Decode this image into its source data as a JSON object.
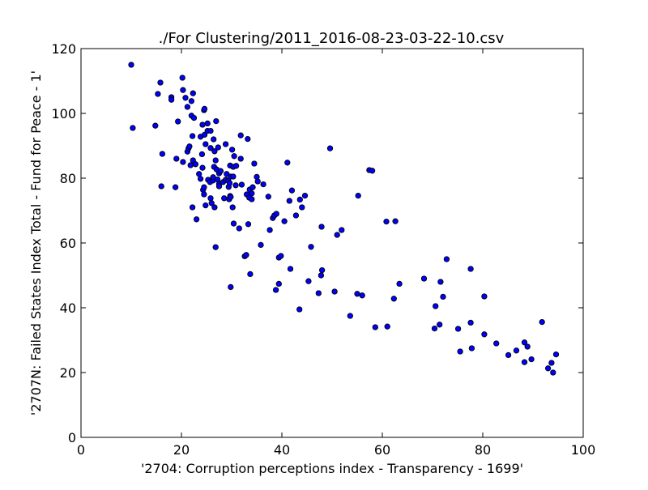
{
  "chart_data": {
    "type": "scatter",
    "title": "./For Clustering/2011_2016-08-23-03-22-10.csv",
    "xlabel": "'2704: Corruption perceptions index - Transparency - 1699'",
    "ylabel": "'2707N: Failed States Index Total - Fund for Peace - 1'",
    "xlim": [
      0,
      100
    ],
    "ylim": [
      0,
      120
    ],
    "xticks": [
      0,
      20,
      40,
      60,
      80,
      100
    ],
    "yticks": [
      0,
      20,
      40,
      60,
      80,
      100,
      120
    ],
    "grid": false,
    "marker_color": "#0000ff",
    "marker_edge": "#000000",
    "points": [
      [
        10,
        115
      ],
      [
        10.3,
        95.5
      ],
      [
        14.8,
        96.2
      ],
      [
        15.3,
        106
      ],
      [
        15.8,
        109.5
      ],
      [
        16.2,
        87.5
      ],
      [
        16,
        77.5
      ],
      [
        18,
        105
      ],
      [
        18,
        104.2
      ],
      [
        18.8,
        77.2
      ],
      [
        19,
        86
      ],
      [
        19.3,
        97.5
      ],
      [
        20.2,
        111
      ],
      [
        20.3,
        107.2
      ],
      [
        20.8,
        104.8
      ],
      [
        21.2,
        102
      ],
      [
        21.2,
        88.2
      ],
      [
        21.4,
        89.2
      ],
      [
        21.6,
        89.8
      ],
      [
        22,
        103.8
      ],
      [
        22.3,
        106.2
      ],
      [
        22,
        99.3
      ],
      [
        22.5,
        98.6
      ],
      [
        20.3,
        85
      ],
      [
        21.8,
        84
      ],
      [
        22.3,
        85.5
      ],
      [
        22.8,
        84.3
      ],
      [
        22.2,
        93
      ],
      [
        22.2,
        71
      ],
      [
        23,
        67.3
      ],
      [
        23.5,
        81.3
      ],
      [
        23.8,
        79.8
      ],
      [
        23.8,
        92.8
      ],
      [
        24.1,
        87.4
      ],
      [
        24.2,
        83.2
      ],
      [
        24.3,
        76.4
      ],
      [
        24.5,
        75
      ],
      [
        24.5,
        77.2
      ],
      [
        24.8,
        71.6
      ],
      [
        24.2,
        96.5
      ],
      [
        24.5,
        101
      ],
      [
        24.6,
        101.4
      ],
      [
        24.6,
        93.4
      ],
      [
        25.2,
        96.9
      ],
      [
        24.8,
        90.5
      ],
      [
        25.2,
        94.6
      ],
      [
        25.8,
        94.6
      ],
      [
        25.8,
        89.3
      ],
      [
        25.3,
        79.5
      ],
      [
        25.7,
        78.8
      ],
      [
        26.3,
        79.3
      ],
      [
        25.8,
        73.8
      ],
      [
        26,
        72.3
      ],
      [
        26.3,
        80.3
      ],
      [
        26.5,
        83.5
      ],
      [
        26.6,
        71
      ],
      [
        26.4,
        92
      ],
      [
        26.6,
        88.3
      ],
      [
        26.9,
        97.6
      ],
      [
        26.8,
        85.5
      ],
      [
        27,
        82.7
      ],
      [
        27.2,
        79.6
      ],
      [
        27.5,
        78.2
      ],
      [
        27.5,
        81.5
      ],
      [
        27.8,
        82.2
      ],
      [
        26.8,
        58.7
      ],
      [
        27.3,
        89.5
      ],
      [
        27.5,
        77.5
      ],
      [
        28.3,
        78.8
      ],
      [
        28.5,
        73.8
      ],
      [
        28.8,
        79.5
      ],
      [
        28.8,
        90.5
      ],
      [
        29,
        81.3
      ],
      [
        29.3,
        79.2
      ],
      [
        29.4,
        77.3
      ],
      [
        29.6,
        78.5
      ],
      [
        29.5,
        73.5
      ],
      [
        29.7,
        74.5
      ],
      [
        29.8,
        74.2
      ],
      [
        29.7,
        83.9
      ],
      [
        29.8,
        80.5
      ],
      [
        30.1,
        88.8
      ],
      [
        30.3,
        83.5
      ],
      [
        30.3,
        80.5
      ],
      [
        30.5,
        86.8
      ],
      [
        30.2,
        71
      ],
      [
        30.4,
        66
      ],
      [
        30.8,
        77.8
      ],
      [
        30.9,
        83.8
      ],
      [
        31.5,
        64.5
      ],
      [
        31.8,
        93.2
      ],
      [
        31.8,
        86
      ],
      [
        32,
        78
      ],
      [
        29.8,
        46.4
      ],
      [
        32.6,
        55.9
      ],
      [
        32.9,
        56.3
      ],
      [
        33,
        75
      ],
      [
        33.2,
        92.1
      ],
      [
        33.3,
        65.8
      ],
      [
        33.5,
        74
      ],
      [
        33.6,
        76.5
      ],
      [
        33.7,
        50.4
      ],
      [
        34,
        73.5
      ],
      [
        34,
        75.3
      ],
      [
        34.2,
        77.2
      ],
      [
        34.5,
        84.5
      ],
      [
        35,
        80.4
      ],
      [
        35.2,
        79
      ],
      [
        35.8,
        59.4
      ],
      [
        36.3,
        78.1
      ],
      [
        37.3,
        74.3
      ],
      [
        37.6,
        64
      ],
      [
        38.2,
        67.7
      ],
      [
        38.5,
        68.5
      ],
      [
        38.8,
        45.5
      ],
      [
        38.9,
        69
      ],
      [
        39.4,
        47.4
      ],
      [
        39.4,
        55.5
      ],
      [
        39.8,
        56
      ],
      [
        40.5,
        66.7
      ],
      [
        41.1,
        84.8
      ],
      [
        41.5,
        73
      ],
      [
        41.7,
        52
      ],
      [
        42,
        76.2
      ],
      [
        42.8,
        68.5
      ],
      [
        43.5,
        39.5
      ],
      [
        43.6,
        73.4
      ],
      [
        44,
        71
      ],
      [
        44.6,
        74.6
      ],
      [
        45.3,
        48.2
      ],
      [
        45.8,
        58.8
      ],
      [
        47.3,
        44.5
      ],
      [
        47.9,
        65
      ],
      [
        47.8,
        50
      ],
      [
        48,
        51.6
      ],
      [
        49.6,
        89.2
      ],
      [
        50.5,
        45
      ],
      [
        51,
        62.5
      ],
      [
        51.9,
        64
      ],
      [
        53.6,
        37.5
      ],
      [
        55,
        44.3
      ],
      [
        55.2,
        74.6
      ],
      [
        56,
        43.8
      ],
      [
        57.4,
        82.5
      ],
      [
        58,
        82.3
      ],
      [
        58.6,
        34
      ],
      [
        60.8,
        66.6
      ],
      [
        61,
        34.2
      ],
      [
        62.3,
        42.8
      ],
      [
        62.6,
        66.7
      ],
      [
        63.4,
        47.4
      ],
      [
        68.3,
        49
      ],
      [
        70.4,
        33.6
      ],
      [
        70.6,
        40.5
      ],
      [
        71.4,
        34.8
      ],
      [
        71.6,
        48
      ],
      [
        72.1,
        43.4
      ],
      [
        72.8,
        55
      ],
      [
        75.1,
        33.5
      ],
      [
        75.5,
        26.5
      ],
      [
        77.6,
        52
      ],
      [
        77.6,
        35.4
      ],
      [
        77.8,
        27.5
      ],
      [
        80.3,
        43.5
      ],
      [
        80.3,
        31.8
      ],
      [
        82.7,
        29
      ],
      [
        85.1,
        25.4
      ],
      [
        86.7,
        26.8
      ],
      [
        88.3,
        23.2
      ],
      [
        88.3,
        29.3
      ],
      [
        88.9,
        28
      ],
      [
        89.7,
        24.1
      ],
      [
        91.8,
        35.6
      ],
      [
        93,
        21.3
      ],
      [
        93.7,
        23
      ],
      [
        94,
        20
      ],
      [
        94.6,
        25.6
      ]
    ]
  }
}
